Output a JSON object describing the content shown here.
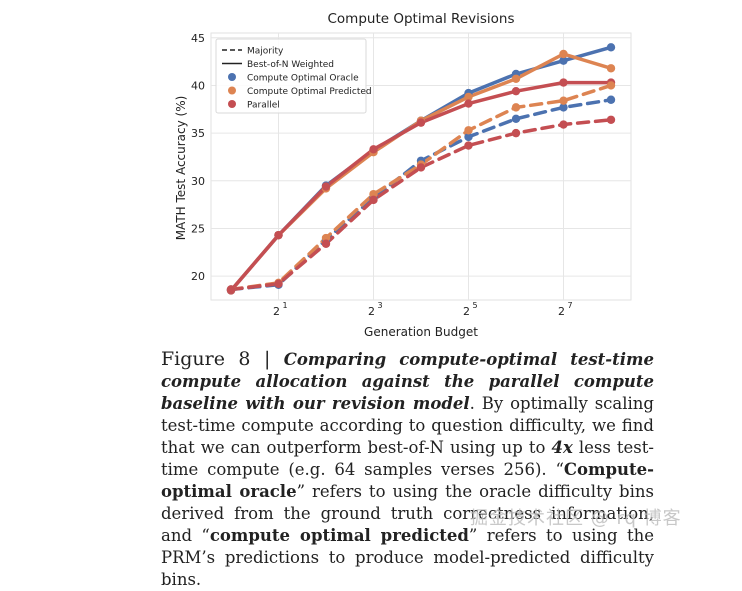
{
  "chart_data": {
    "type": "line",
    "title": "Compute Optimal Revisions",
    "xlabel": "Generation Budget",
    "ylabel": "MATH Test Accuracy (%)",
    "xscale": "log2",
    "x": [
      1,
      2,
      4,
      8,
      16,
      32,
      64,
      128,
      256
    ],
    "xticks": [
      {
        "value": 2,
        "base": "2",
        "exp": "1"
      },
      {
        "value": 8,
        "base": "2",
        "exp": "3"
      },
      {
        "value": 32,
        "base": "2",
        "exp": "5"
      },
      {
        "value": 128,
        "base": "2",
        "exp": "7"
      }
    ],
    "yticks": [
      20,
      25,
      30,
      35,
      40,
      45
    ],
    "ylim": [
      17.5,
      45.5
    ],
    "grid": true,
    "legend_position": "top-left",
    "legend": [
      {
        "label": "Majority",
        "kind": "dashed-line"
      },
      {
        "label": "Best-of-N Weighted",
        "kind": "solid-line"
      },
      {
        "label": "Compute Optimal Oracle",
        "kind": "marker",
        "color": "#4c72b0"
      },
      {
        "label": "Compute Optimal Predicted",
        "kind": "marker",
        "color": "#dd8452"
      },
      {
        "label": "Parallel",
        "kind": "marker",
        "color": "#c44e52"
      }
    ],
    "series": [
      {
        "name": "Compute Optimal Oracle",
        "style": "Best-of-N Weighted",
        "color": "#4c72b0",
        "values": [
          18.5,
          24.3,
          29.5,
          33.2,
          36.3,
          39.2,
          41.2,
          42.6,
          44.0
        ]
      },
      {
        "name": "Compute Optimal Predicted",
        "style": "Best-of-N Weighted",
        "color": "#dd8452",
        "values": [
          18.5,
          24.3,
          29.2,
          33.0,
          36.3,
          38.8,
          40.7,
          43.3,
          41.8
        ]
      },
      {
        "name": "Parallel",
        "style": "Best-of-N Weighted",
        "color": "#c44e52",
        "values": [
          18.5,
          24.3,
          29.4,
          33.3,
          36.1,
          38.1,
          39.4,
          40.3,
          40.3
        ]
      },
      {
        "name": "Compute Optimal Oracle",
        "style": "Majority",
        "color": "#4c72b0",
        "values": [
          18.6,
          19.1,
          23.8,
          28.2,
          32.1,
          34.6,
          36.5,
          37.7,
          38.5
        ]
      },
      {
        "name": "Compute Optimal Predicted",
        "style": "Majority",
        "color": "#dd8452",
        "values": [
          18.6,
          19.3,
          24.0,
          28.6,
          31.7,
          35.3,
          37.7,
          38.4,
          40.0
        ]
      },
      {
        "name": "Parallel",
        "style": "Majority",
        "color": "#c44e52",
        "values": [
          18.6,
          19.2,
          23.4,
          28.0,
          31.4,
          33.7,
          35.0,
          35.9,
          36.4
        ]
      }
    ]
  },
  "caption": {
    "figure_label": "Figure 8 | ",
    "title": "Comparing compute-optimal test-time compute allocation against the parallel compute baseline with our revision model",
    "text_1": ". By optimally scaling test-time compute according to question difficulty, we find that we can outperform best-of-N using up to ",
    "emph": "4x",
    "text_2": " less test-time compute (e.g. 64 samples verses 256). “",
    "oracle_term": "Compute-optimal oracle",
    "text_3": "” refers to using the oracle difficulty bins derived from the ground truth correctness information, and “",
    "predicted_term": "compute optimal predicted",
    "text_4": "” refers to using the PRM’s predictions to produce model-predicted difficulty bins."
  },
  "watermark": "掘金技术社区 @ rq 博客"
}
